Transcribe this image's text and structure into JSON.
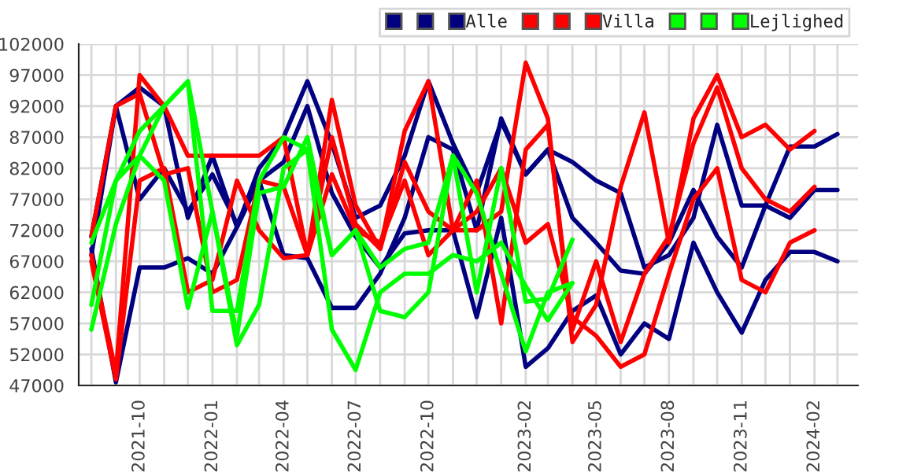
{
  "chart_data": {
    "type": "line",
    "x": [
      "2021-08",
      "2021-09",
      "2021-10",
      "2021-11",
      "2021-12",
      "2022-01",
      "2022-02",
      "2022-03",
      "2022-04",
      "2022-05",
      "2022-06",
      "2022-07",
      "2022-08",
      "2022-09",
      "2022-10",
      "2022-11",
      "2022-12",
      "2023-01",
      "2023-02",
      "2023-03",
      "2023-04",
      "2023-05",
      "2023-06",
      "2023-07",
      "2023-08",
      "2023-09",
      "2023-10",
      "2023-11",
      "2023-12",
      "2024-01",
      "2024-02",
      "2024-03"
    ],
    "series": [
      {
        "color": "#000080",
        "values": [
          71000,
          92000,
          95000,
          92000,
          74000,
          84000,
          72500,
          82000,
          87000,
          96000,
          86000,
          74000,
          76000,
          84000,
          96000,
          86000,
          78000,
          89500,
          81000,
          85000,
          83000,
          80000,
          78000,
          66000,
          68000,
          74000,
          89000,
          76000,
          76000,
          85500,
          85500,
          87500
        ]
      },
      {
        "color": "#000080",
        "values": [
          68000,
          92000,
          77000,
          82000,
          75000,
          81000,
          73000,
          80000,
          68000,
          67500,
          59500,
          59500,
          65000,
          74000,
          87000,
          85000,
          72000,
          90000,
          81000,
          85000,
          74000,
          70000,
          65500,
          65000,
          70000,
          78500,
          71000,
          66000,
          76000,
          74000,
          78500,
          78500
        ]
      },
      {
        "name": "Alle",
        "color": "#000080",
        "values": [
          69000,
          47500,
          66000,
          66000,
          67500,
          65000,
          72500,
          80000,
          83000,
          92000,
          78000,
          71000,
          66000,
          71500,
          72000,
          72000,
          58000,
          74000,
          50000,
          53000,
          59000,
          61500,
          52000,
          57000,
          54500,
          70000,
          62000,
          55500,
          64000,
          68500,
          68500,
          67000
        ]
      },
      {
        "color": "#ff0000",
        "values": [
          68000,
          49000,
          97000,
          92000,
          84000,
          84000,
          84000,
          84000,
          87000,
          68000,
          93000,
          76000,
          69000,
          88000,
          96000,
          72000,
          72000,
          75000,
          99000,
          90000,
          54000,
          60000,
          79000,
          91000,
          70000,
          90000,
          97000,
          87000,
          89000,
          85000,
          88000,
          null
        ]
      },
      {
        "color": "#ff0000",
        "values": [
          71000,
          92000,
          94000,
          81000,
          82000,
          62000,
          64000,
          80000,
          79000,
          68000,
          87000,
          73000,
          69000,
          83000,
          75000,
          72000,
          80000,
          57000,
          85000,
          89000,
          56000,
          67000,
          54000,
          65000,
          71000,
          86000,
          95000,
          82000,
          77000,
          75000,
          79000,
          null
        ]
      },
      {
        "name": "Villa",
        "color": "#ff0000",
        "values": [
          67000,
          48000,
          80000,
          82000,
          62000,
          64000,
          80000,
          72000,
          67500,
          68000,
          81000,
          72000,
          70000,
          80000,
          68000,
          72000,
          75000,
          82000,
          70000,
          73000,
          58000,
          55000,
          50000,
          52000,
          65000,
          77000,
          82000,
          64000,
          62000,
          70000,
          72000,
          null
        ]
      },
      {
        "color": "#00ff00",
        "values": [
          56000,
          73000,
          84000,
          92000,
          96000,
          59000,
          59000,
          80000,
          87000,
          85000,
          68000,
          72000,
          66000,
          69000,
          70000,
          84000,
          62000,
          82000,
          60500,
          61000,
          70500,
          null,
          null,
          null,
          null,
          null,
          null,
          null,
          null,
          null,
          null,
          null
        ]
      },
      {
        "color": "#00ff00",
        "values": [
          60000,
          80000,
          84000,
          80000,
          59500,
          75000,
          53500,
          60000,
          82000,
          85000,
          56000,
          49500,
          62000,
          65000,
          65000,
          68000,
          67000,
          70000,
          63000,
          57500,
          63500,
          null,
          null,
          null,
          null,
          null,
          null,
          null,
          null,
          null,
          null,
          null
        ]
      },
      {
        "name": "Lejlighed",
        "color": "#00ff00",
        "values": [
          70000,
          80000,
          88000,
          92000,
          96000,
          75000,
          55000,
          78000,
          79000,
          87000,
          68000,
          72000,
          59000,
          58000,
          62000,
          84000,
          78000,
          65000,
          52500,
          62000,
          63500,
          null,
          null,
          null,
          null,
          null,
          null,
          null,
          null,
          null,
          null,
          null
        ]
      }
    ],
    "xlim": [
      "2021-07-16",
      "2024-03-27"
    ],
    "xticks": [
      {
        "value": "2021-08",
        "label": null
      },
      {
        "value": "2021-09",
        "label": null
      },
      {
        "value": "2021-10",
        "label": "2021-10"
      },
      {
        "value": "2021-11",
        "label": null
      },
      {
        "value": "2021-12",
        "label": null
      },
      {
        "value": "2022-01",
        "label": "2022-01"
      },
      {
        "value": "2022-02",
        "label": null
      },
      {
        "value": "2022-03",
        "label": null
      },
      {
        "value": "2022-04",
        "label": "2022-04"
      },
      {
        "value": "2022-05",
        "label": null
      },
      {
        "value": "2022-06",
        "label": null
      },
      {
        "value": "2022-07",
        "label": "2022-07"
      },
      {
        "value": "2022-08",
        "label": null
      },
      {
        "value": "2022-09",
        "label": null
      },
      {
        "value": "2022-10",
        "label": "2022-10"
      },
      {
        "value": "2022-11",
        "label": null
      },
      {
        "value": "2022-12",
        "label": null
      },
      {
        "value": "2023-01",
        "label": null
      },
      {
        "value": "2023-02",
        "label": "2023-02"
      },
      {
        "value": "2023-03",
        "label": null
      },
      {
        "value": "2023-04",
        "label": null
      },
      {
        "value": "2023-05",
        "label": "2023-05"
      },
      {
        "value": "2023-06",
        "label": null
      },
      {
        "value": "2023-07",
        "label": null
      },
      {
        "value": "2023-08",
        "label": "2023-08"
      },
      {
        "value": "2023-09",
        "label": null
      },
      {
        "value": "2023-10",
        "label": null
      },
      {
        "value": "2023-11",
        "label": "2023-11"
      },
      {
        "value": "2023-12",
        "label": null
      },
      {
        "value": "2024-01",
        "label": null
      },
      {
        "value": "2024-02",
        "label": "2024-02"
      },
      {
        "value": "2024-03",
        "label": null
      }
    ],
    "ylim": [
      47000,
      102000
    ],
    "yticks": [
      47000,
      52000,
      57000,
      62000,
      67000,
      72000,
      77000,
      82000,
      87000,
      92000,
      97000,
      102000
    ],
    "grid": true,
    "legend": "top right",
    "marker": "none",
    "line_style": "solid"
  }
}
